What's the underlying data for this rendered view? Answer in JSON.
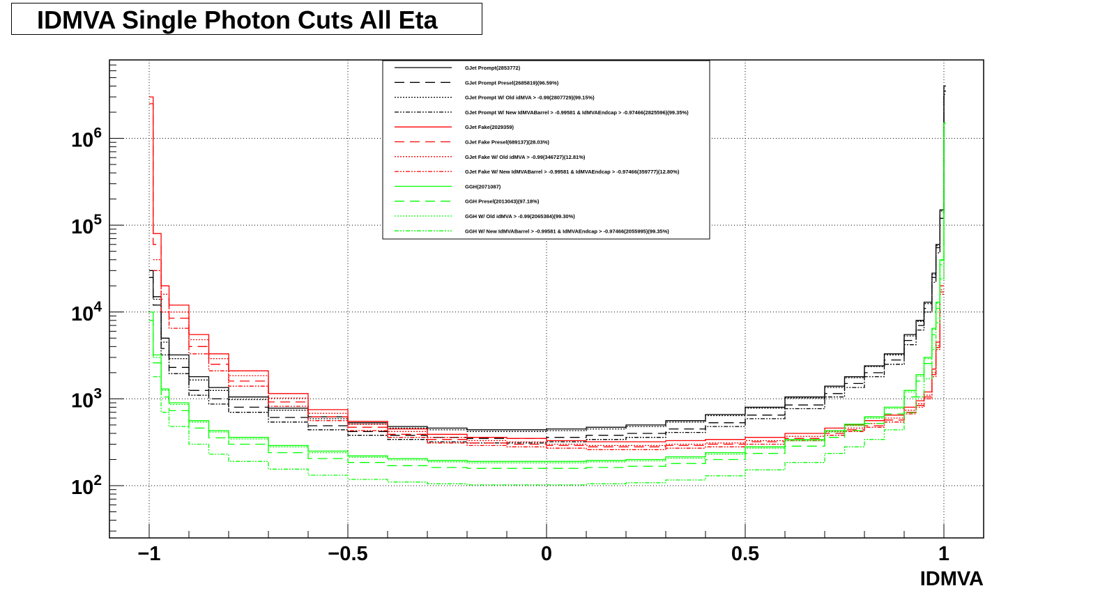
{
  "title": "IDMVA Single Photon Cuts All Eta",
  "chart_data": {
    "type": "line",
    "xlabel": "IDMVA",
    "ylabel": "",
    "xlim": [
      -1.1,
      1.1
    ],
    "ylim": [
      25,
      8000000
    ],
    "yscale": "log",
    "grid": true,
    "legend_position": "top-center",
    "x_ticks": [
      {
        "value": -1,
        "label": "−1"
      },
      {
        "value": -0.5,
        "label": "−0.5"
      },
      {
        "value": 0,
        "label": "0"
      },
      {
        "value": 0.5,
        "label": "0.5"
      },
      {
        "value": 1,
        "label": "1"
      }
    ],
    "y_ticks": [
      {
        "value": 100,
        "base": "10",
        "exp": "2"
      },
      {
        "value": 1000,
        "base": "10",
        "exp": "3"
      },
      {
        "value": 10000,
        "base": "10",
        "exp": "4"
      },
      {
        "value": 100000,
        "base": "10",
        "exp": "5"
      },
      {
        "value": 1000000,
        "base": "10",
        "exp": "6"
      }
    ],
    "x": [
      -1.0,
      -0.99,
      -0.97,
      -0.95,
      -0.9,
      -0.85,
      -0.8,
      -0.7,
      -0.6,
      -0.5,
      -0.4,
      -0.3,
      -0.2,
      -0.1,
      0.0,
      0.1,
      0.2,
      0.3,
      0.4,
      0.5,
      0.6,
      0.7,
      0.75,
      0.8,
      0.85,
      0.9,
      0.93,
      0.95,
      0.97,
      0.98,
      0.99,
      1.0
    ],
    "series": [
      {
        "name": "GJet Prompt(2853772)",
        "color": "#000000",
        "dash": "",
        "values": [
          30000,
          15000,
          5000,
          3200,
          1800,
          1350,
          1050,
          780,
          620,
          530,
          480,
          460,
          440,
          440,
          450,
          470,
          500,
          560,
          660,
          800,
          1050,
          1400,
          1800,
          2400,
          3300,
          5500,
          8000,
          13000,
          28000,
          60000,
          150000,
          4000000
        ]
      },
      {
        "name": "GJet Prompt Presel(2685819)(96.59%)",
        "color": "#000000",
        "dash": "14,8",
        "values": [
          25000,
          12000,
          3800,
          2300,
          1250,
          1000,
          800,
          610,
          490,
          420,
          380,
          360,
          350,
          350,
          360,
          380,
          400,
          450,
          530,
          650,
          850,
          1150,
          1500,
          2000,
          2800,
          4700,
          7000,
          11000,
          25000,
          55000,
          140000,
          3500000
        ]
      },
      {
        "name": "GJet Prompt W/ Old idMVA > -0.99(2807729)(99.15%)",
        "color": "#000000",
        "dash": "2,2",
        "values": [
          0,
          14000,
          4500,
          2900,
          1650,
          1250,
          980,
          740,
          590,
          510,
          460,
          440,
          420,
          420,
          430,
          450,
          480,
          540,
          640,
          780,
          1020,
          1350,
          1750,
          2350,
          3200,
          5300,
          7800,
          12500,
          27000,
          58000,
          145000,
          3800000
        ]
      },
      {
        "name": "GJet Prompt W/ New IdMVABarrel > -0.99581 & IdMVAEndcap > -0.97466(2825596)(99.35%)",
        "color": "#000000",
        "dash": "6,2,2,2,2,2",
        "values": [
          0,
          12000,
          3200,
          1950,
          1100,
          870,
          700,
          540,
          440,
          380,
          340,
          320,
          310,
          310,
          320,
          340,
          360,
          410,
          480,
          590,
          770,
          1050,
          1350,
          1800,
          2500,
          4200,
          6200,
          10000,
          22000,
          48000,
          120000,
          3200000
        ]
      },
      {
        "name": "GJet Fake(2029359)",
        "color": "#ff0000",
        "dash": "",
        "values": [
          3000000,
          80000,
          20000,
          12000,
          5500,
          3300,
          2100,
          1150,
          750,
          550,
          450,
          390,
          360,
          350,
          330,
          320,
          320,
          330,
          340,
          360,
          400,
          460,
          500,
          560,
          650,
          800,
          950,
          1200,
          2200,
          4500,
          20000,
          0
        ]
      },
      {
        "name": "GJet Fake Presel(689137)(28.03%)",
        "color": "#ff0000",
        "dash": "14,8",
        "values": [
          2500000,
          60000,
          14000,
          8500,
          4000,
          2500,
          1600,
          920,
          620,
          470,
          390,
          340,
          310,
          300,
          290,
          280,
          280,
          290,
          300,
          320,
          350,
          400,
          440,
          490,
          570,
          700,
          840,
          1050,
          1900,
          3900,
          17000,
          0
        ]
      },
      {
        "name": "GJet Fake W/ Old idMVA > -0.99(346727)(12.81%)",
        "color": "#ff0000",
        "dash": "2,2",
        "values": [
          0,
          40000,
          16000,
          10000,
          4800,
          2900,
          1850,
          1020,
          680,
          510,
          420,
          360,
          330,
          320,
          300,
          290,
          290,
          300,
          310,
          330,
          370,
          420,
          460,
          520,
          600,
          740,
          880,
          1100,
          2000,
          4100,
          18000,
          0
        ]
      },
      {
        "name": "GJet Fake W/ New IdMVABarrel > -0.99581 & IdMVAEndcap > -0.97466(359777)(12.80%)",
        "color": "#ff0000",
        "dash": "6,2,2,2,2,2",
        "values": [
          0,
          30000,
          10000,
          6500,
          3300,
          2100,
          1400,
          820,
          560,
          430,
          360,
          310,
          290,
          280,
          270,
          260,
          260,
          270,
          280,
          300,
          330,
          380,
          420,
          470,
          540,
          670,
          800,
          1000,
          1800,
          3700,
          16000,
          0
        ]
      },
      {
        "name": "GGH(2071087)",
        "color": "#00ff00",
        "dash": "",
        "values": [
          10000,
          3200,
          1300,
          900,
          560,
          430,
          360,
          290,
          250,
          220,
          205,
          195,
          190,
          190,
          190,
          195,
          200,
          215,
          240,
          280,
          340,
          430,
          510,
          620,
          800,
          1250,
          1900,
          3000,
          6500,
          13000,
          40000,
          1500000
        ]
      },
      {
        "name": "GGH Presel(2013043)(97.18%)",
        "color": "#00ff00",
        "dash": "14,8",
        "values": [
          8000,
          2600,
          1050,
          730,
          460,
          355,
          300,
          240,
          205,
          185,
          170,
          162,
          158,
          158,
          158,
          162,
          167,
          180,
          200,
          235,
          285,
          360,
          430,
          520,
          670,
          1050,
          1600,
          2550,
          5500,
          11000,
          35000,
          1400000
        ]
      },
      {
        "name": "GGH W/ Old idMVA > -0.99(2065384)(99.30%)",
        "color": "#00ff00",
        "dash": "2,2",
        "values": [
          0,
          3000,
          1250,
          860,
          540,
          415,
          345,
          280,
          240,
          212,
          198,
          188,
          183,
          183,
          183,
          188,
          193,
          207,
          231,
          270,
          328,
          415,
          492,
          598,
          772,
          1200,
          1830,
          2900,
          6300,
          12600,
          39000,
          1480000
        ]
      },
      {
        "name": "GGH W/ New IdMVABarrel > -0.99581 & IdMVAEndcap > -0.97466(2055995)(99.35%)",
        "color": "#00ff00",
        "dash": "6,2,2,2,2,2",
        "values": [
          0,
          1800,
          700,
          480,
          300,
          230,
          190,
          155,
          132,
          118,
          110,
          105,
          102,
          102,
          102,
          105,
          108,
          116,
          130,
          152,
          185,
          235,
          280,
          340,
          440,
          690,
          1050,
          1700,
          3700,
          7500,
          24000,
          1300000
        ]
      }
    ]
  }
}
